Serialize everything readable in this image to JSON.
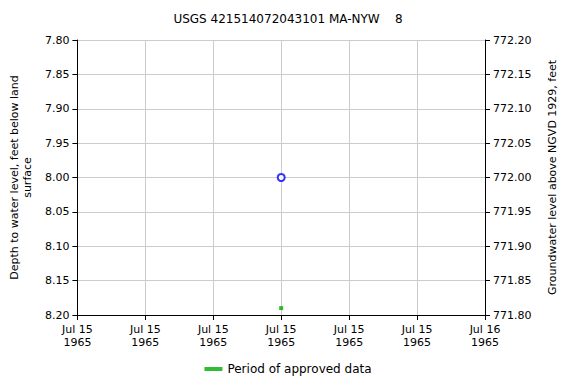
{
  "chart_data": {
    "type": "scatter",
    "title": "USGS 421514072043101 MA-NYW    8",
    "y_label": "Depth to water level, feet below land\nsurface",
    "y2_label": "Groundwater level above NGVD 1929, feet",
    "categories": [
      "Jul 15\n1965",
      "Jul 15\n1965",
      "Jul 15\n1965",
      "Jul 15\n1965",
      "Jul 15\n1965",
      "Jul 15\n1965",
      "Jul 16\n1965"
    ],
    "series": [
      {
        "values": [
          null,
          null,
          null,
          8.0,
          null,
          null,
          null
        ],
        "color": "#0000ff",
        "marker": "circle"
      },
      {
        "name": "Period of approved data",
        "values": [
          null,
          null,
          null,
          8.19,
          null,
          null,
          null
        ],
        "color": "#00aa00",
        "marker": "square"
      }
    ],
    "ylim": [
      7.8,
      8.2
    ],
    "yticks": [
      {
        "value": 7.8,
        "label": "7.80"
      },
      {
        "value": 7.85,
        "label": "7.85"
      },
      {
        "value": 7.9,
        "label": "7.90"
      },
      {
        "value": 7.95,
        "label": "7.95"
      },
      {
        "value": 8.0,
        "label": "8.00"
      },
      {
        "value": 8.05,
        "label": "8.05"
      },
      {
        "value": 8.1,
        "label": "8.10"
      },
      {
        "value": 8.15,
        "label": "8.15"
      },
      {
        "value": 8.2,
        "label": "8.20"
      }
    ],
    "y2lim": [
      771.8,
      772.2
    ],
    "y2ticks": [
      {
        "value": 771.8,
        "label": "771.80"
      },
      {
        "value": 771.85,
        "label": "771.85"
      },
      {
        "value": 771.9,
        "label": "771.90"
      },
      {
        "value": 771.95,
        "label": "771.95"
      },
      {
        "value": 772.0,
        "label": "772.00"
      },
      {
        "value": 772.05,
        "label": "772.05"
      },
      {
        "value": 772.1,
        "label": "772.10"
      },
      {
        "value": 772.15,
        "label": "772.15"
      },
      {
        "value": 772.2,
        "label": "772.20"
      }
    ],
    "grid": true,
    "legend": "bottom"
  }
}
